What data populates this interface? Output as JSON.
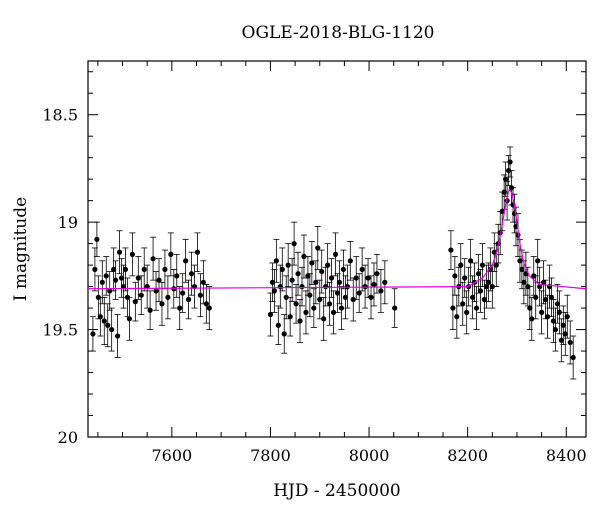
{
  "chart_data": {
    "type": "scatter",
    "title": "OGLE-2018-BLG-1120",
    "xlabel": "HJD - 2450000",
    "ylabel": "I magnitude",
    "xlim": [
      7430,
      8440
    ],
    "ylim": [
      20,
      18.25
    ],
    "y_inverted": true,
    "x_ticks": [
      7600,
      7800,
      8000,
      8200,
      8400
    ],
    "y_ticks": [
      18.5,
      19,
      19.5,
      20
    ],
    "y_tick_labels": [
      "18.5",
      "19",
      "19.5",
      "20"
    ],
    "points_color": "#000000",
    "model_color": "#e000e0",
    "series": [
      {
        "kind": "photometry",
        "points": [
          [
            7440,
            19.52,
            0.08
          ],
          [
            7444,
            19.22,
            0.1
          ],
          [
            7448,
            19.08,
            0.08
          ],
          [
            7451,
            19.35,
            0.1
          ],
          [
            7455,
            19.44,
            0.09
          ],
          [
            7459,
            19.28,
            0.1
          ],
          [
            7463,
            19.46,
            0.11
          ],
          [
            7467,
            19.25,
            0.09
          ],
          [
            7470,
            19.48,
            0.1
          ],
          [
            7474,
            19.32,
            0.09
          ],
          [
            7478,
            19.5,
            0.1
          ],
          [
            7482,
            19.22,
            0.1
          ],
          [
            7486,
            19.27,
            0.09
          ],
          [
            7490,
            19.53,
            0.1
          ],
          [
            7494,
            19.14,
            0.1
          ],
          [
            7498,
            19.26,
            0.09
          ],
          [
            7502,
            19.3,
            0.1
          ],
          [
            7506,
            19.22,
            0.1
          ],
          [
            7510,
            19.35,
            0.09
          ],
          [
            7514,
            19.45,
            0.1
          ],
          [
            7520,
            19.15,
            0.1
          ],
          [
            7526,
            19.37,
            0.09
          ],
          [
            7532,
            19.26,
            0.1
          ],
          [
            7538,
            19.34,
            0.09
          ],
          [
            7544,
            19.22,
            0.1
          ],
          [
            7550,
            19.3,
            0.1
          ],
          [
            7556,
            19.41,
            0.09
          ],
          [
            7562,
            19.17,
            0.1
          ],
          [
            7568,
            19.32,
            0.09
          ],
          [
            7574,
            19.27,
            0.1
          ],
          [
            7580,
            19.38,
            0.1
          ],
          [
            7586,
            19.22,
            0.09
          ],
          [
            7592,
            19.35,
            0.1
          ],
          [
            7598,
            19.15,
            0.1
          ],
          [
            7604,
            19.31,
            0.09
          ],
          [
            7610,
            19.25,
            0.1
          ],
          [
            7616,
            19.4,
            0.1
          ],
          [
            7622,
            19.33,
            0.09
          ],
          [
            7628,
            19.18,
            0.1
          ],
          [
            7634,
            19.36,
            0.09
          ],
          [
            7640,
            19.24,
            0.1
          ],
          [
            7646,
            19.3,
            0.1
          ],
          [
            7652,
            19.14,
            0.09
          ],
          [
            7658,
            19.34,
            0.1
          ],
          [
            7664,
            19.28,
            0.1
          ],
          [
            7670,
            19.38,
            0.09
          ],
          [
            7676,
            19.4,
            0.1
          ],
          [
            7800,
            19.43,
            0.1
          ],
          [
            7804,
            19.28,
            0.09
          ],
          [
            7808,
            19.32,
            0.1
          ],
          [
            7812,
            19.18,
            0.1
          ],
          [
            7816,
            19.48,
            0.09
          ],
          [
            7820,
            19.3,
            0.1
          ],
          [
            7824,
            19.22,
            0.1
          ],
          [
            7828,
            19.52,
            0.09
          ],
          [
            7832,
            19.35,
            0.1
          ],
          [
            7836,
            19.2,
            0.1
          ],
          [
            7840,
            19.44,
            0.09
          ],
          [
            7844,
            19.27,
            0.1
          ],
          [
            7848,
            19.1,
            0.1
          ],
          [
            7852,
            19.38,
            0.09
          ],
          [
            7856,
            19.24,
            0.1
          ],
          [
            7860,
            19.46,
            0.1
          ],
          [
            7864,
            19.3,
            0.09
          ],
          [
            7868,
            19.16,
            0.1
          ],
          [
            7872,
            19.42,
            0.1
          ],
          [
            7876,
            19.25,
            0.09
          ],
          [
            7880,
            19.34,
            0.1
          ],
          [
            7884,
            19.19,
            0.1
          ],
          [
            7888,
            19.4,
            0.09
          ],
          [
            7892,
            19.28,
            0.1
          ],
          [
            7896,
            19.12,
            0.1
          ],
          [
            7900,
            19.36,
            0.09
          ],
          [
            7904,
            19.23,
            0.1
          ],
          [
            7908,
            19.45,
            0.1
          ],
          [
            7912,
            19.3,
            0.09
          ],
          [
            7916,
            19.2,
            0.1
          ],
          [
            7920,
            19.38,
            0.1
          ],
          [
            7924,
            19.26,
            0.09
          ],
          [
            7928,
            19.42,
            0.1
          ],
          [
            7932,
            19.15,
            0.1
          ],
          [
            7936,
            19.33,
            0.09
          ],
          [
            7940,
            19.28,
            0.1
          ],
          [
            7944,
            19.4,
            0.1
          ],
          [
            7948,
            19.22,
            0.09
          ],
          [
            7952,
            19.35,
            0.1
          ],
          [
            7956,
            19.3,
            0.1
          ],
          [
            7962,
            19.18,
            0.09
          ],
          [
            7968,
            19.36,
            0.1
          ],
          [
            7974,
            19.26,
            0.1
          ],
          [
            7980,
            19.33,
            0.09
          ],
          [
            7986,
            19.22,
            0.1
          ],
          [
            7992,
            19.3,
            0.1
          ],
          [
            7998,
            19.26,
            0.09
          ],
          [
            8004,
            19.35,
            0.1
          ],
          [
            8010,
            19.29,
            0.1
          ],
          [
            8016,
            19.24,
            0.09
          ],
          [
            8024,
            19.32,
            0.1
          ],
          [
            8032,
            19.28,
            0.1
          ],
          [
            8052,
            19.4,
            0.09
          ],
          [
            8166,
            19.13,
            0.09
          ],
          [
            8170,
            19.4,
            0.1
          ],
          [
            8174,
            19.25,
            0.09
          ],
          [
            8178,
            19.44,
            0.1
          ],
          [
            8182,
            19.3,
            0.09
          ],
          [
            8186,
            19.2,
            0.1
          ],
          [
            8190,
            19.38,
            0.1
          ],
          [
            8194,
            19.26,
            0.09
          ],
          [
            8198,
            19.42,
            0.1
          ],
          [
            8202,
            19.3,
            0.09
          ],
          [
            8206,
            19.18,
            0.1
          ],
          [
            8210,
            19.35,
            0.1
          ],
          [
            8214,
            19.28,
            0.09
          ],
          [
            8218,
            19.4,
            0.1
          ],
          [
            8222,
            19.24,
            0.09
          ],
          [
            8226,
            19.32,
            0.1
          ],
          [
            8230,
            19.2,
            0.1
          ],
          [
            8234,
            19.36,
            0.09
          ],
          [
            8238,
            19.3,
            0.1
          ],
          [
            8242,
            19.28,
            0.09
          ],
          [
            8246,
            19.22,
            0.1
          ],
          [
            8250,
            19.3,
            0.1
          ],
          [
            8254,
            19.14,
            0.09
          ],
          [
            8258,
            19.2,
            0.1
          ],
          [
            8262,
            19.1,
            0.09
          ],
          [
            8266,
            19.05,
            0.1
          ],
          [
            8270,
            18.95,
            0.09
          ],
          [
            8274,
            18.86,
            0.08
          ],
          [
            8277,
            18.8,
            0.08
          ],
          [
            8280,
            18.9,
            0.09
          ],
          [
            8283,
            18.76,
            0.07
          ],
          [
            8286,
            18.72,
            0.07
          ],
          [
            8289,
            18.84,
            0.08
          ],
          [
            8292,
            18.92,
            0.08
          ],
          [
            8295,
            18.96,
            0.09
          ],
          [
            8298,
            19.02,
            0.09
          ],
          [
            8302,
            19.06,
            0.1
          ],
          [
            8306,
            19.18,
            0.1
          ],
          [
            8310,
            19.22,
            0.09
          ],
          [
            8314,
            19.28,
            0.1
          ],
          [
            8318,
            19.24,
            0.1
          ],
          [
            8322,
            19.3,
            0.09
          ],
          [
            8326,
            19.4,
            0.1
          ],
          [
            8330,
            19.45,
            0.1
          ],
          [
            8334,
            19.25,
            0.09
          ],
          [
            8338,
            19.35,
            0.1
          ],
          [
            8342,
            19.18,
            0.1
          ],
          [
            8346,
            19.3,
            0.09
          ],
          [
            8350,
            19.42,
            0.1
          ],
          [
            8354,
            19.28,
            0.1
          ],
          [
            8358,
            19.36,
            0.09
          ],
          [
            8362,
            19.44,
            0.1
          ],
          [
            8366,
            19.3,
            0.1
          ],
          [
            8370,
            19.35,
            0.09
          ],
          [
            8374,
            19.46,
            0.1
          ],
          [
            8378,
            19.5,
            0.1
          ],
          [
            8382,
            19.38,
            0.09
          ],
          [
            8386,
            19.42,
            0.1
          ],
          [
            8390,
            19.55,
            0.1
          ],
          [
            8394,
            19.48,
            0.09
          ],
          [
            8398,
            19.52,
            0.1
          ],
          [
            8402,
            19.44,
            0.1
          ],
          [
            8408,
            19.56,
            0.1
          ],
          [
            8414,
            19.63,
            0.1
          ]
        ]
      },
      {
        "kind": "model",
        "baseline": 19.31,
        "peak_time": 8286,
        "peak_mag": 18.85,
        "curve": [
          [
            7430,
            19.31
          ],
          [
            8200,
            19.3
          ],
          [
            8230,
            19.26
          ],
          [
            8250,
            19.2
          ],
          [
            8260,
            19.13
          ],
          [
            8268,
            19.04
          ],
          [
            8274,
            18.96
          ],
          [
            8279,
            18.89
          ],
          [
            8284,
            18.85
          ],
          [
            8289,
            18.86
          ],
          [
            8294,
            18.91
          ],
          [
            8300,
            19.0
          ],
          [
            8306,
            19.1
          ],
          [
            8314,
            19.19
          ],
          [
            8325,
            19.25
          ],
          [
            8345,
            19.29
          ],
          [
            8440,
            19.31
          ]
        ]
      }
    ]
  }
}
